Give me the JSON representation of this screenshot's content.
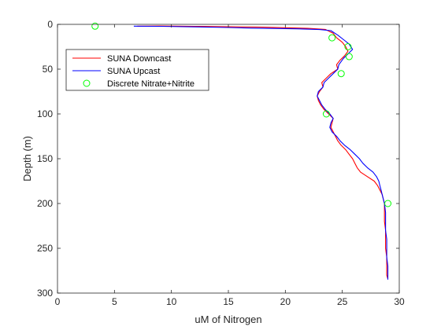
{
  "chart_data": {
    "type": "line",
    "xlabel": "uM of Nitrogen",
    "ylabel": "Depth (m)",
    "xlim": [
      0,
      30
    ],
    "ylim": [
      0,
      300
    ],
    "y_reversed": true,
    "xticks": [
      0,
      5,
      10,
      15,
      20,
      25,
      30
    ],
    "yticks": [
      0,
      50,
      100,
      150,
      200,
      250,
      300
    ],
    "grid": false,
    "legend_position": "top-left",
    "series": [
      {
        "name": "SUNA Downcast",
        "color": "#ff0000",
        "style": "line",
        "points": [
          [
            7.0,
            2
          ],
          [
            9.0,
            1.8
          ],
          [
            12.0,
            2.2
          ],
          [
            15.0,
            2.6
          ],
          [
            18.0,
            3.2
          ],
          [
            20.0,
            3.8
          ],
          [
            22.0,
            4.5
          ],
          [
            23.5,
            5.6
          ],
          [
            24.2,
            10
          ],
          [
            24.5,
            15
          ],
          [
            25.0,
            20
          ],
          [
            25.3,
            25
          ],
          [
            25.5,
            30
          ],
          [
            25.2,
            35
          ],
          [
            24.8,
            40
          ],
          [
            24.5,
            45
          ],
          [
            24.6,
            50
          ],
          [
            24.0,
            55
          ],
          [
            23.6,
            60
          ],
          [
            23.2,
            65
          ],
          [
            23.3,
            70
          ],
          [
            23.0,
            75
          ],
          [
            22.8,
            80
          ],
          [
            22.9,
            85
          ],
          [
            23.1,
            90
          ],
          [
            23.4,
            95
          ],
          [
            23.8,
            100
          ],
          [
            24.2,
            105
          ],
          [
            24.1,
            110
          ],
          [
            24.0,
            115
          ],
          [
            24.2,
            120
          ],
          [
            24.4,
            125
          ],
          [
            24.6,
            130
          ],
          [
            24.9,
            135
          ],
          [
            25.3,
            140
          ],
          [
            25.6,
            145
          ],
          [
            25.9,
            150
          ],
          [
            26.1,
            155
          ],
          [
            26.3,
            160
          ],
          [
            26.6,
            165
          ],
          [
            27.2,
            170
          ],
          [
            27.8,
            175
          ],
          [
            28.1,
            180
          ],
          [
            28.3,
            185
          ],
          [
            28.5,
            190
          ],
          [
            28.6,
            195
          ],
          [
            28.7,
            200
          ],
          [
            28.7,
            210
          ],
          [
            28.7,
            220
          ],
          [
            28.8,
            230
          ],
          [
            28.8,
            240
          ],
          [
            28.8,
            250
          ],
          [
            28.9,
            260
          ],
          [
            28.9,
            270
          ],
          [
            28.9,
            280
          ],
          [
            29.0,
            284
          ]
        ]
      },
      {
        "name": "SUNA Upcast",
        "color": "#0000ff",
        "style": "line",
        "points": [
          [
            6.7,
            2
          ],
          [
            9.0,
            2.2
          ],
          [
            12.0,
            2.8
          ],
          [
            15.0,
            3.5
          ],
          [
            17.0,
            4.2
          ],
          [
            19.0,
            4.6
          ],
          [
            21.0,
            5.0
          ],
          [
            23.0,
            5.8
          ],
          [
            24.0,
            7
          ],
          [
            24.6,
            12
          ],
          [
            25.2,
            18
          ],
          [
            25.6,
            22
          ],
          [
            25.9,
            28
          ],
          [
            25.5,
            33
          ],
          [
            25.1,
            38
          ],
          [
            24.7,
            45
          ],
          [
            24.6,
            50
          ],
          [
            24.2,
            55
          ],
          [
            23.8,
            60
          ],
          [
            23.4,
            65
          ],
          [
            23.3,
            70
          ],
          [
            22.9,
            75
          ],
          [
            22.8,
            80
          ],
          [
            23.0,
            85
          ],
          [
            23.2,
            90
          ],
          [
            23.5,
            95
          ],
          [
            23.9,
            100
          ],
          [
            24.2,
            105
          ],
          [
            24.0,
            110
          ],
          [
            23.9,
            115
          ],
          [
            24.1,
            120
          ],
          [
            24.5,
            125
          ],
          [
            24.8,
            130
          ],
          [
            25.2,
            135
          ],
          [
            25.7,
            140
          ],
          [
            26.1,
            145
          ],
          [
            26.5,
            150
          ],
          [
            26.8,
            155
          ],
          [
            27.2,
            160
          ],
          [
            27.7,
            165
          ],
          [
            28.0,
            170
          ],
          [
            28.2,
            175
          ],
          [
            28.3,
            180
          ],
          [
            28.4,
            185
          ],
          [
            28.5,
            190
          ],
          [
            28.6,
            195
          ],
          [
            28.7,
            200
          ],
          [
            28.8,
            210
          ],
          [
            28.8,
            220
          ],
          [
            28.8,
            230
          ],
          [
            28.9,
            240
          ],
          [
            28.9,
            250
          ],
          [
            28.9,
            260
          ],
          [
            29.0,
            270
          ],
          [
            29.0,
            280
          ],
          [
            29.0,
            285
          ]
        ]
      },
      {
        "name": "Discrete Nitrate+Nitrite",
        "color": "#00ff00",
        "style": "marker",
        "points": [
          [
            3.3,
            2
          ],
          [
            24.1,
            15
          ],
          [
            25.5,
            25
          ],
          [
            25.6,
            36
          ],
          [
            24.9,
            55
          ],
          [
            23.6,
            100
          ],
          [
            29.0,
            200
          ]
        ]
      }
    ]
  }
}
